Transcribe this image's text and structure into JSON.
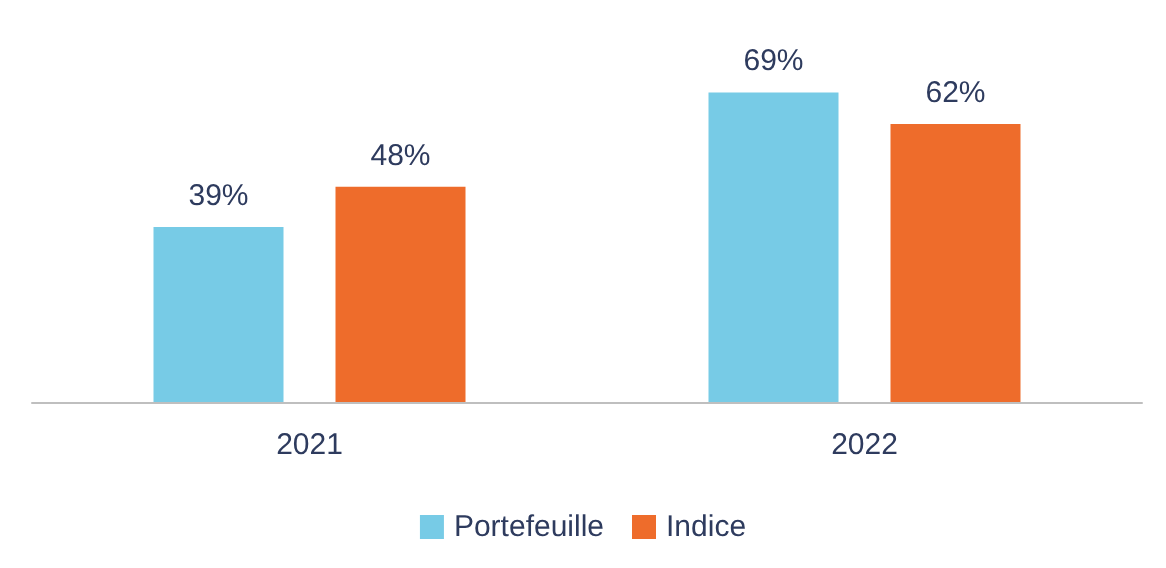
{
  "chart_data": {
    "type": "bar",
    "categories": [
      "2021",
      "2022"
    ],
    "series": [
      {
        "name": "Portefeuille",
        "color": "#77cbe6",
        "values": [
          39,
          69
        ],
        "value_labels": [
          "39%",
          "69%"
        ]
      },
      {
        "name": "Indice",
        "color": "#ee6c2b",
        "values": [
          48,
          62
        ],
        "value_labels": [
          "48%",
          "62%"
        ]
      }
    ],
    "legend": "bottom",
    "grid": false
  }
}
